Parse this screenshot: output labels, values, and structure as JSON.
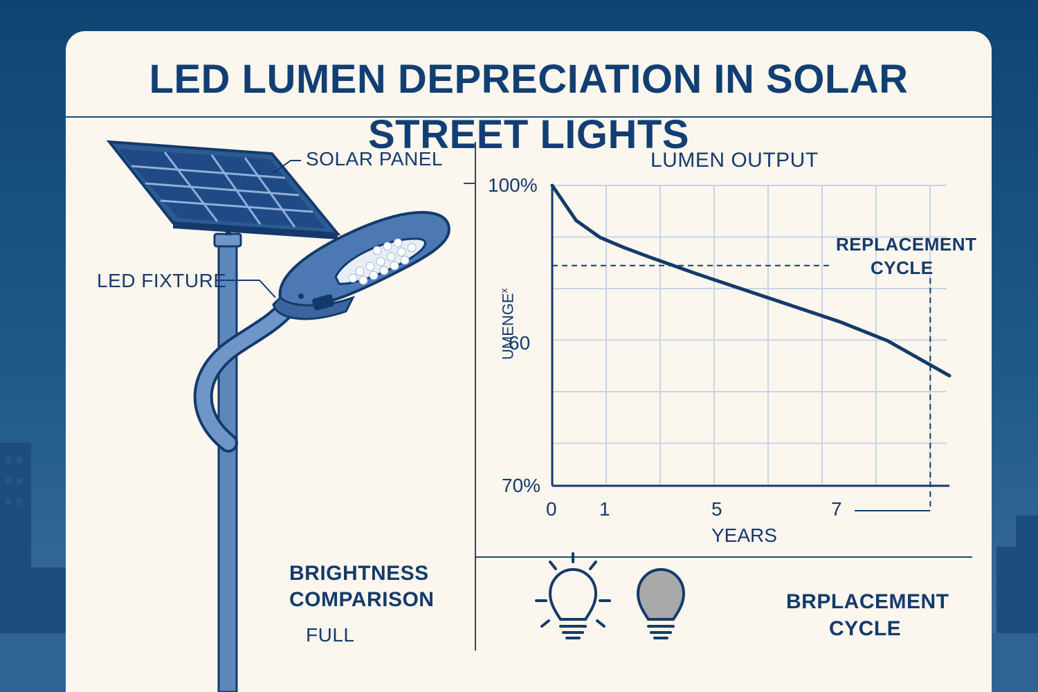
{
  "title": "LED LUMEN DEPRECIATION IN SOLAR STREET LIGHTS",
  "illustration": {
    "solar_panel_label": "SOLAR PANEL",
    "led_fixture_label": "LED FIXTURE"
  },
  "chart_data": {
    "type": "line",
    "title": "LUMEN OUTPUT",
    "xlabel": "YEARS",
    "ylabel": "UMENGE",
    "ylabel_suffix": "x",
    "x_ticks": [
      "0",
      "1",
      "5",
      "7"
    ],
    "y_ticks": [
      "100%",
      "60",
      "70%"
    ],
    "series": [
      {
        "name": "Lumen output",
        "x": [
          0,
          0.5,
          1,
          1.5,
          2,
          3,
          4,
          5,
          6,
          7,
          8.3
        ],
        "y": [
          100,
          96.5,
          94.8,
          93.8,
          92.9,
          91.2,
          89.6,
          88.0,
          86.4,
          84.5,
          81.0
        ]
      }
    ],
    "replacement_threshold_y": 92.0,
    "replacement_year": 7.9,
    "annotation": [
      "REPLACEMENT",
      "CYCLE"
    ]
  },
  "bottom": {
    "brightness_comparison": [
      "BRIGHTNESS",
      "COMPARISON"
    ],
    "full_label": "FULL",
    "replacement_label": [
      "BRPLACEMENT",
      "CYCLE"
    ]
  },
  "colors": {
    "navy": "#143a6b",
    "background": "#fbf6ee",
    "sky": "#0f4472",
    "grid": "#c7d5e5",
    "bulb_dim": "#a9a9a9"
  },
  "icons": [
    "bright-bulb-icon",
    "dim-bulb-icon"
  ]
}
